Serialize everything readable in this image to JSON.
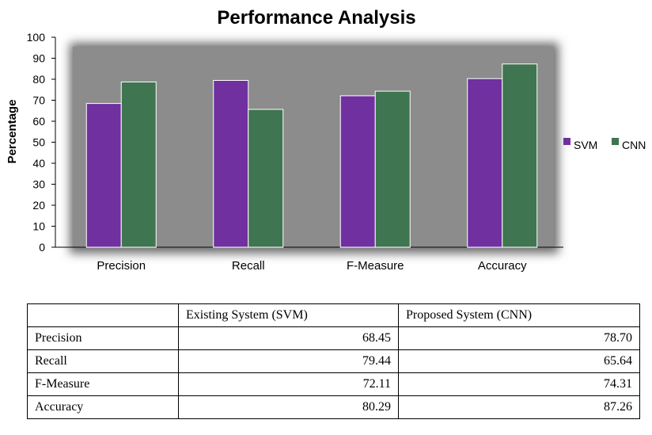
{
  "chart_data": {
    "type": "bar",
    "title": "Performance Analysis",
    "xlabel": "",
    "ylabel": "Percentage",
    "categories": [
      "Precision",
      "Recall",
      "F-Measure",
      "Accuracy"
    ],
    "series": [
      {
        "name": "SVM",
        "color": "#7030a0",
        "values": [
          68.45,
          79.44,
          72.11,
          80.29
        ]
      },
      {
        "name": "CNN",
        "color": "#3f7550",
        "values": [
          78.7,
          65.64,
          74.31,
          87.26
        ]
      }
    ],
    "ylim": [
      0,
      100
    ],
    "yticks": [
      "0",
      "10",
      "20",
      "30",
      "40",
      "50",
      "60",
      "70",
      "80",
      "90",
      "100"
    ],
    "plot_background": "#8c8c8c",
    "grid": false,
    "legend_position": "right"
  },
  "table": {
    "headers": [
      "",
      "Existing System (SVM)",
      "Proposed System (CNN)"
    ],
    "rows": [
      [
        "Precision",
        "68.45",
        "78.70"
      ],
      [
        "Recall",
        "79.44",
        "65.64"
      ],
      [
        "F-Measure",
        "72.11",
        "74.31"
      ],
      [
        "Accuracy",
        "80.29",
        "87.26"
      ]
    ]
  }
}
